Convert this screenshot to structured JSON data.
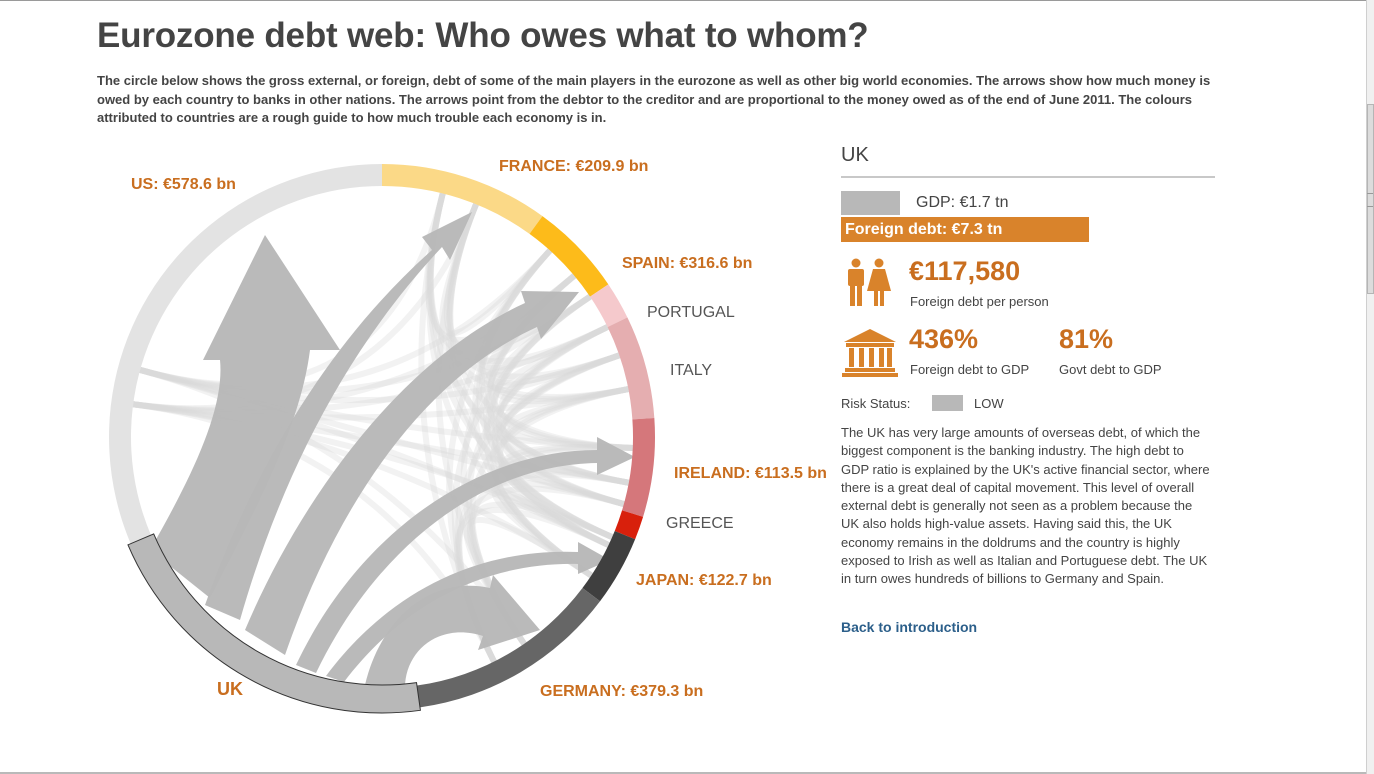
{
  "page": {
    "title": "Eurozone debt web: Who owes what to whom?",
    "intro": "The circle below shows the gross external, or foreign, debt of some of the main players in the eurozone as well as other big world economies. The arrows show how much money is owed by each country to banks in other nations. The arrows point from the debtor to the creditor and are proportional to the money owed as of the end of June 2011. The colours attributed to countries are a rough guide to how much trouble each economy is in."
  },
  "diagram": {
    "selected": "UK",
    "colors": {
      "low": "#b8b8b8",
      "ring_bg": "#e3e3e3",
      "france": "#fbd987",
      "spain": "#fdbb1a",
      "portugal": "#f5c9cc",
      "italy": "#e5aeb0",
      "ireland": "#d5777b",
      "greece": "#d8200c",
      "japan": "#3f3f3f",
      "germany": "#666666",
      "highlight_text": "#c96e1f"
    },
    "labels": {
      "us": "US: €578.6 bn",
      "france": "FRANCE: €209.9 bn",
      "spain": "SPAIN: €316.6 bn",
      "portugal": "PORTUGAL",
      "italy": "ITALY",
      "ireland": "IRELAND: €113.5 bn",
      "greece": "GREECE",
      "japan": "JAPAN: €122.7 bn",
      "germany": "GERMANY: €379.3 bn",
      "uk": "UK"
    }
  },
  "panel": {
    "country": "UK",
    "gdp": "GDP: €1.7 tn",
    "foreign_debt": "Foreign debt: €7.3 tn",
    "per_person_value": "€117,580",
    "per_person_label": "Foreign debt per person",
    "debt_to_gdp_value": "436%",
    "debt_to_gdp_label": "Foreign debt to GDP",
    "govt_debt_value": "81%",
    "govt_debt_label": "Govt debt to GDP",
    "risk_label": "Risk Status:",
    "risk_value": "LOW",
    "description": "The UK has very large amounts of overseas debt, of which the biggest component is the banking industry. The high debt to GDP ratio is explained by the UK's active financial sector, where there is a great deal of capital movement. This level of overall external debt is generally not seen as a problem because the UK also holds high-value assets. Having said this, the UK economy remains in the doldrums and the country is highly exposed to Irish as well as Italian and Portuguese debt. The UK in turn owes hundreds of billions to Germany and Spain.",
    "back_link": "Back to introduction"
  }
}
